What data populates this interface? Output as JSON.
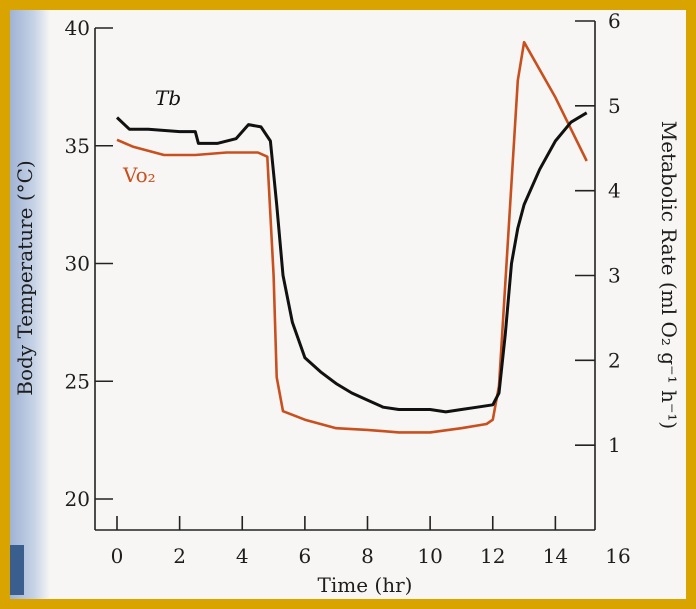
{
  "chart_data": {
    "type": "line",
    "xlabel": "Time (hr)",
    "ylabel_left": "Body Temperature (°C)",
    "ylabel_right": "Metabolic Rate (ml O₂ g⁻¹ h⁻¹)",
    "xlim": [
      0,
      16
    ],
    "ylim_left": [
      20,
      40
    ],
    "ylim_right": [
      0,
      6
    ],
    "x_ticks": [
      "0",
      "2",
      "4",
      "6",
      "8",
      "10",
      "12",
      "14",
      "16"
    ],
    "y_left_ticks": [
      "20",
      "25",
      "30",
      "35",
      "40"
    ],
    "y_right_ticks": [
      "1",
      "2",
      "3",
      "4",
      "5",
      "6"
    ],
    "grid": false,
    "series": [
      {
        "name": "Tb",
        "axis": "left",
        "color": "#111111",
        "x": [
          0,
          0.4,
          1,
          2,
          2.5,
          2.6,
          2.8,
          3.2,
          3.8,
          4.2,
          4.6,
          4.9,
          5.1,
          5.3,
          5.6,
          6,
          6.5,
          7,
          7.5,
          8,
          8.5,
          9,
          9.5,
          10,
          10.5,
          11,
          11.5,
          12,
          12.2,
          12.4,
          12.6,
          12.8,
          13.0,
          13.5,
          14,
          14.5,
          15
        ],
        "y": [
          36.2,
          35.7,
          35.7,
          35.6,
          35.6,
          35.1,
          35.1,
          35.1,
          35.3,
          35.9,
          35.8,
          35.2,
          32.5,
          29.5,
          27.5,
          26.0,
          25.4,
          24.9,
          24.5,
          24.2,
          23.9,
          23.8,
          23.8,
          23.8,
          23.7,
          23.8,
          23.9,
          24.0,
          24.5,
          27.0,
          30.0,
          31.5,
          32.5,
          34.0,
          35.2,
          36.0,
          36.4
        ]
      },
      {
        "name": "Vo₂",
        "axis": "right",
        "color": "#c8501e",
        "x": [
          0,
          0.5,
          1.5,
          2.5,
          3.5,
          4.5,
          4.8,
          5.0,
          5.1,
          5.3,
          6,
          7,
          8,
          9,
          10,
          11,
          11.8,
          12.0,
          12.2,
          12.5,
          12.8,
          13.0,
          14,
          15
        ],
        "y": [
          4.6,
          4.52,
          4.42,
          4.42,
          4.45,
          4.45,
          4.4,
          3.0,
          1.8,
          1.4,
          1.3,
          1.2,
          1.18,
          1.15,
          1.15,
          1.2,
          1.25,
          1.3,
          1.7,
          3.5,
          5.3,
          5.75,
          5.1,
          4.35
        ]
      }
    ]
  }
}
